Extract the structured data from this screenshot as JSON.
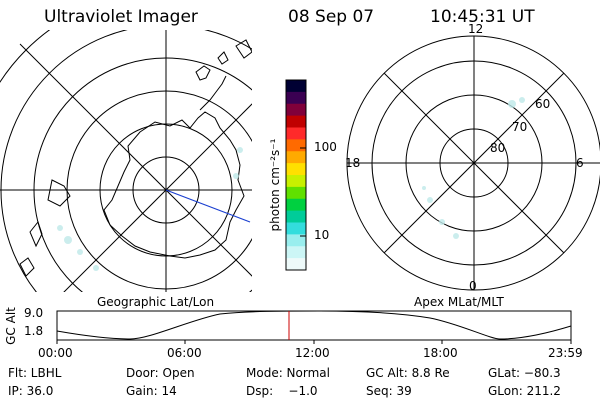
{
  "header": {
    "instrument": "Ultraviolet Imager",
    "date": "08 Sep 07",
    "time": "10:45:31 UT"
  },
  "left_panel": {
    "label": "Geographic Lat/Lon"
  },
  "right_panel": {
    "label": "Apex MLat/MLT",
    "mlt_labels": {
      "top": "12",
      "left": "18",
      "right": "6",
      "bottom": "0"
    },
    "lat_labels": [
      "60",
      "70",
      "80"
    ]
  },
  "colorbar": {
    "unit_label": "photon cm⁻²s⁻¹",
    "ticks": [
      "100",
      "10"
    ],
    "colors": [
      "#000033",
      "#3a0052",
      "#80003a",
      "#c00000",
      "#ff2a2a",
      "#ff6a00",
      "#ffaa00",
      "#ffe000",
      "#c8f000",
      "#60e000",
      "#00d040",
      "#00cc99",
      "#33dddd",
      "#99eeee",
      "#ccf6f6",
      "#eefafa"
    ]
  },
  "gc_alt_plot": {
    "ylabel": "GC Alt",
    "yticks": [
      "9.0",
      "1.8"
    ],
    "xticks": [
      "00:00",
      "06:00",
      "12:00",
      "18:00",
      "23:59"
    ],
    "marker_color": "#cc0000"
  },
  "info": {
    "row1": {
      "flt": "Flt: LBHL",
      "door": "Door: Open",
      "mode": "Mode: Normal",
      "gcalt": "GC Alt: 8.8 Re",
      "glat": "GLat: −80.3"
    },
    "row2": {
      "ip": "IP: 36.0",
      "gain": "Gain: 14",
      "dsp": "Dsp:    −1.0",
      "seq": "Seq: 39",
      "glon": "GLon: 211.2"
    }
  }
}
